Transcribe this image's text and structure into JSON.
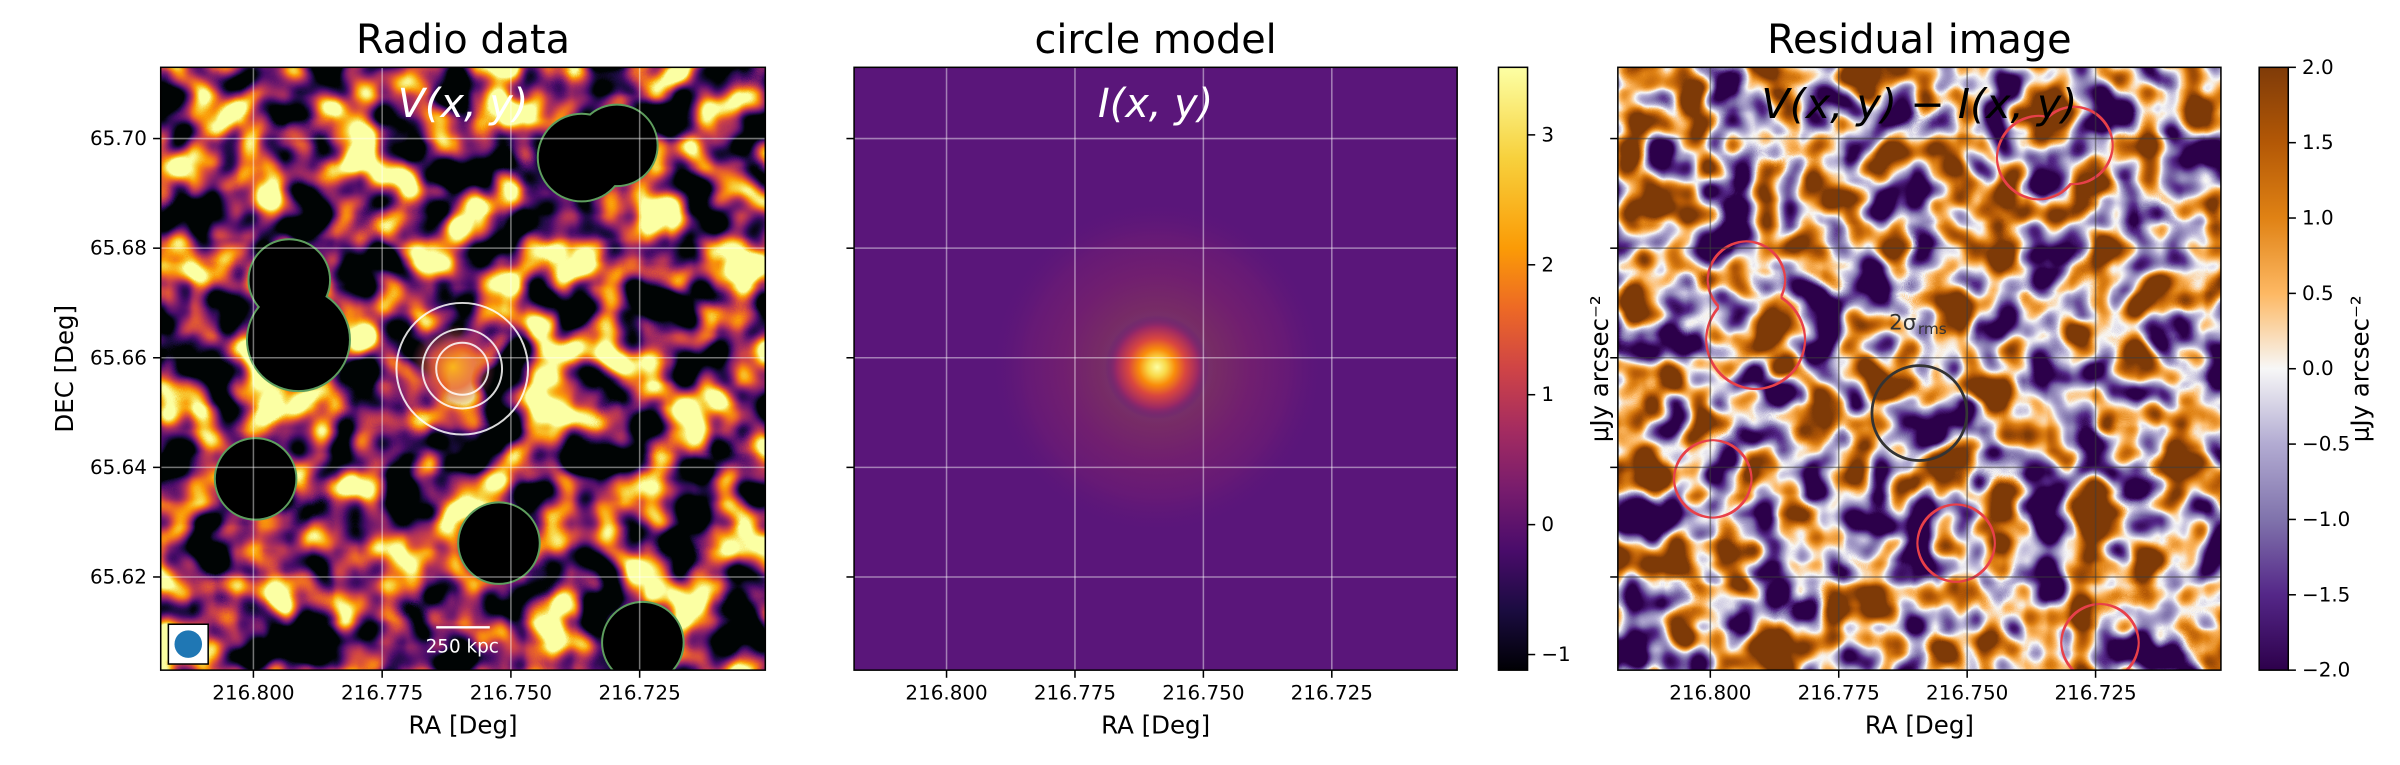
{
  "chart_data": [
    {
      "type": "image",
      "title": "Radio data",
      "annotation": "V(x, y)",
      "scale_bar": "250 kpc",
      "xlabel": "RA [Deg]",
      "ylabel": "DEC [Deg]",
      "colormap": "inferno",
      "grid": true,
      "ytick_labels": true,
      "xlim": [
        216.818,
        216.7006
      ],
      "ylim": [
        65.603,
        65.713
      ],
      "xticks": [
        {
          "value": 216.8,
          "label": "216.800"
        },
        {
          "value": 216.775,
          "label": "216.775"
        },
        {
          "value": 216.75,
          "label": "216.750"
        },
        {
          "value": 216.725,
          "label": "216.725"
        }
      ],
      "yticks": [
        65.62,
        65.64,
        65.66,
        65.68,
        {
          "value": 65.7,
          "label": "65.70"
        }
      ]
    },
    {
      "type": "image",
      "title": "circle model",
      "annotation": "I(x, y)",
      "xlabel": "RA [Deg]",
      "colormap": "inferno",
      "grid": true,
      "ytick_labels": false,
      "xlim": [
        216.818,
        216.7006
      ],
      "ylim": [
        65.603,
        65.713
      ],
      "xticks": [
        {
          "value": 216.8,
          "label": "216.800"
        },
        {
          "value": 216.775,
          "label": "216.775"
        },
        {
          "value": 216.75,
          "label": "216.750"
        },
        {
          "value": 216.725,
          "label": "216.725"
        }
      ],
      "yticks": [
        65.62,
        65.64,
        65.66,
        65.68,
        {
          "value": 65.7,
          "label": "65.70"
        }
      ],
      "colorbar": {
        "label": "μJy arcsec⁻²",
        "lim": [
          -1.12,
          3.52
        ],
        "ticks": [
          {
            "value": -1,
            "label": "−1"
          },
          0,
          1,
          2,
          3
        ]
      }
    },
    {
      "type": "image",
      "title": "Residual image",
      "annotation": "V(x, y) − I(x, y)",
      "circle_label": {
        "text": "2σ",
        "sub": "rms"
      },
      "xlabel": "RA [Deg]",
      "colormap": "PuOr_r",
      "grid": true,
      "ytick_labels": false,
      "xlim": [
        216.818,
        216.7006
      ],
      "ylim": [
        65.603,
        65.713
      ],
      "xticks": [
        {
          "value": 216.8,
          "label": "216.800"
        },
        {
          "value": 216.775,
          "label": "216.775"
        },
        {
          "value": 216.75,
          "label": "216.750"
        },
        {
          "value": 216.725,
          "label": "216.725"
        }
      ],
      "yticks": [
        65.62,
        65.64,
        65.66,
        65.68,
        {
          "value": 65.7,
          "label": "65.70"
        }
      ],
      "colorbar": {
        "label": "μJy arcsec⁻²",
        "lim": [
          -2.0,
          2.0
        ],
        "ticks": [
          {
            "value": -2,
            "label": "−2.0"
          },
          {
            "value": -1.5,
            "label": "−1.5"
          },
          {
            "value": -1,
            "label": "−1.0"
          },
          {
            "value": -0.5,
            "label": "−0.5"
          },
          {
            "value": 0,
            "label": "0.0"
          },
          {
            "value": 0.5,
            "label": "0.5"
          },
          {
            "value": 1,
            "label": "1.0"
          },
          {
            "value": 1.5,
            "label": "1.5"
          },
          {
            "value": 2,
            "label": "2.0"
          }
        ]
      }
    }
  ]
}
